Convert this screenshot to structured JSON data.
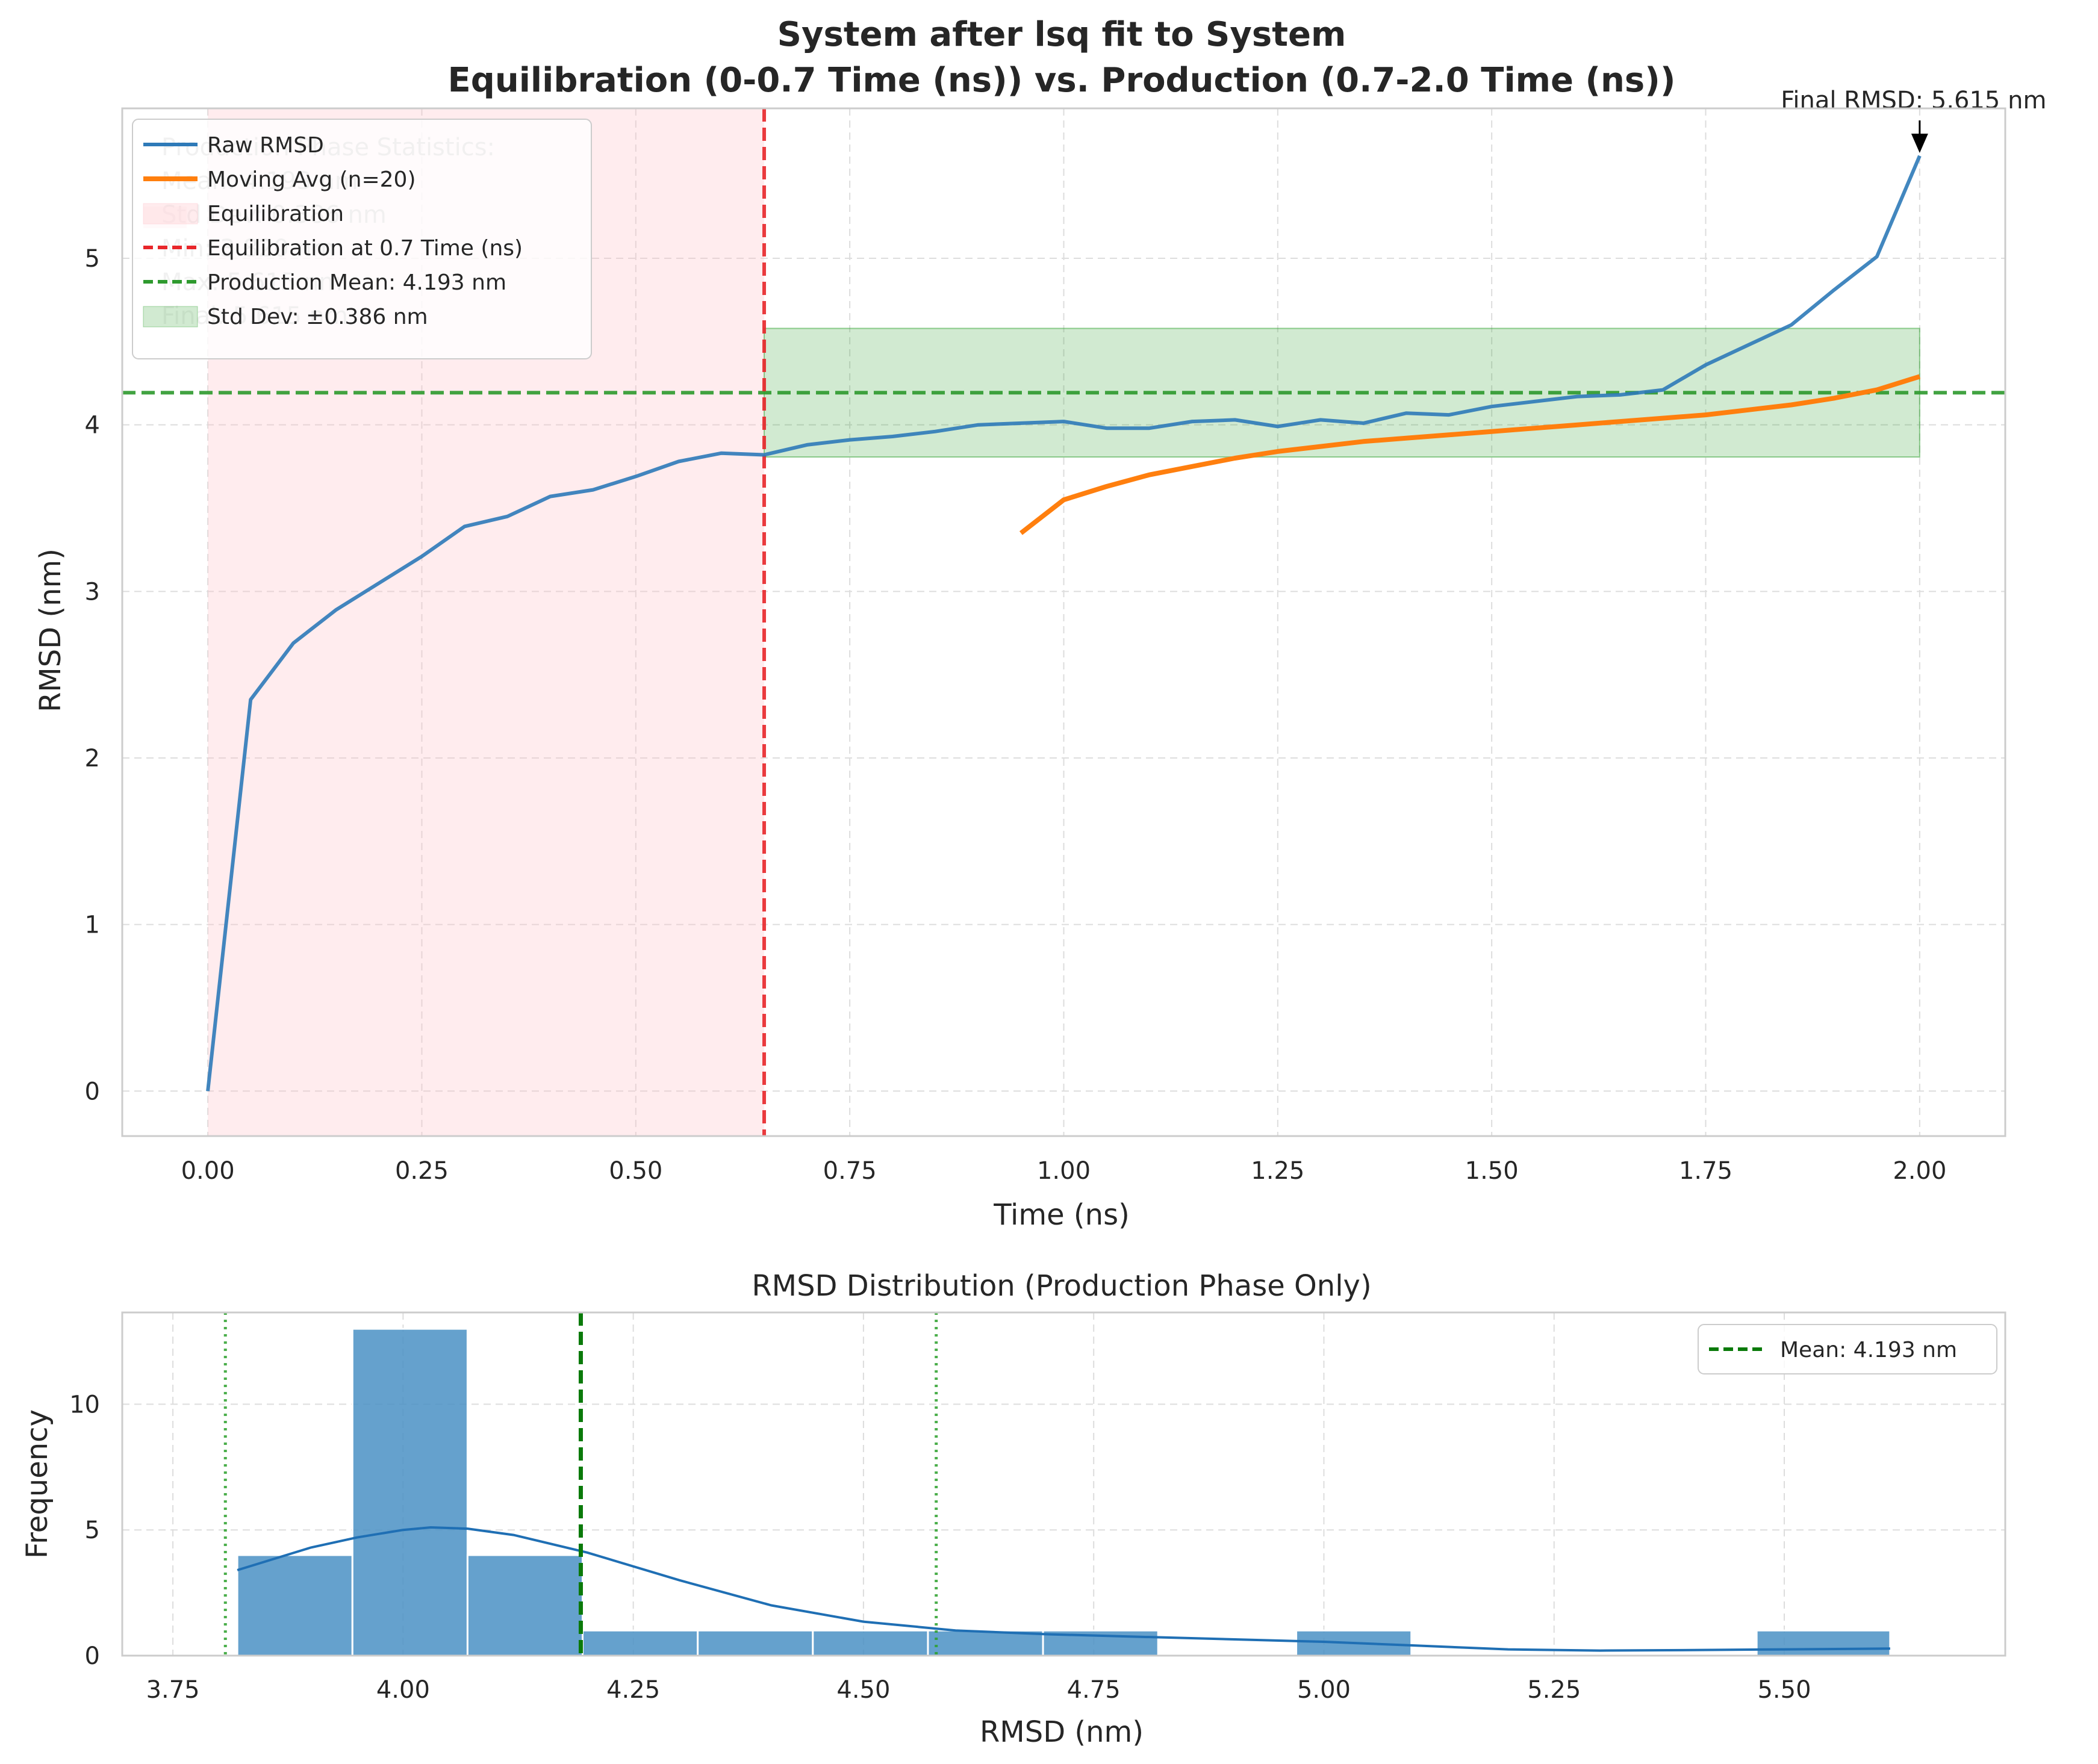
{
  "chart_data": [
    {
      "type": "line",
      "title": "System after lsq fit to System\nEquilibration (0-0.7 Time (ns)) vs. Production (0.7-2.0 Time (ns))",
      "title_lines": [
        "System after lsq fit to System",
        "Equilibration (0-0.7 Time (ns)) vs. Production (0.7-2.0 Time (ns))"
      ],
      "xlabel": "Time (ns)",
      "ylabel": "RMSD (nm)",
      "xlim": [
        -0.1,
        2.1
      ],
      "ylim": [
        -0.27,
        5.9
      ],
      "xticks": [
        0.0,
        0.25,
        0.5,
        0.75,
        1.0,
        1.25,
        1.5,
        1.75,
        2.0
      ],
      "xtick_labels": [
        "0.00",
        "0.25",
        "0.50",
        "0.75",
        "1.00",
        "1.25",
        "1.50",
        "1.75",
        "2.00"
      ],
      "yticks": [
        0,
        1,
        2,
        3,
        4,
        5
      ],
      "ytick_labels": [
        "0",
        "1",
        "2",
        "3",
        "4",
        "5"
      ],
      "grid": true,
      "legend_position": "upper-left",
      "series": [
        {
          "name": "Raw RMSD",
          "color": "#2e7ab8",
          "x": [
            0.0,
            0.05,
            0.1,
            0.15,
            0.2,
            0.25,
            0.3,
            0.35,
            0.4,
            0.45,
            0.5,
            0.55,
            0.6,
            0.65,
            0.7,
            0.75,
            0.8,
            0.85,
            0.9,
            0.95,
            1.0,
            1.05,
            1.1,
            1.15,
            1.2,
            1.25,
            1.3,
            1.35,
            1.4,
            1.45,
            1.5,
            1.55,
            1.6,
            1.65,
            1.7,
            1.75,
            1.8,
            1.85,
            1.9,
            1.95,
            2.0
          ],
          "y": [
            0.0,
            2.35,
            2.69,
            2.89,
            3.05,
            3.21,
            3.39,
            3.45,
            3.57,
            3.61,
            3.69,
            3.78,
            3.83,
            3.82,
            3.88,
            3.91,
            3.93,
            3.96,
            4.0,
            4.01,
            4.02,
            3.98,
            3.98,
            4.02,
            4.03,
            3.99,
            4.03,
            4.01,
            4.07,
            4.06,
            4.11,
            4.14,
            4.17,
            4.18,
            4.21,
            4.36,
            4.48,
            4.6,
            4.81,
            5.01,
            5.615
          ]
        },
        {
          "name": "Moving Avg (n=20)",
          "color": "#ff7f0e",
          "x": [
            0.95,
            1.0,
            1.05,
            1.1,
            1.15,
            1.2,
            1.25,
            1.3,
            1.35,
            1.4,
            1.45,
            1.5,
            1.55,
            1.6,
            1.65,
            1.7,
            1.75,
            1.8,
            1.85,
            1.9,
            1.95,
            2.0
          ],
          "y": [
            3.35,
            3.55,
            3.63,
            3.7,
            3.75,
            3.8,
            3.84,
            3.87,
            3.9,
            3.92,
            3.94,
            3.96,
            3.98,
            4.0,
            4.02,
            4.04,
            4.06,
            4.09,
            4.12,
            4.16,
            4.21,
            4.29
          ]
        }
      ],
      "equilibration_region": {
        "label": "Equilibration",
        "x0": 0.0,
        "x1": 0.65,
        "color": "#ffc0c8"
      },
      "equilibration_line": {
        "label": "Equilibration at 0.7 Time (ns)",
        "x": 0.65,
        "color": "#e8262a"
      },
      "production_mean_line": {
        "label": "Production Mean: 4.193 nm",
        "y": 4.193,
        "color": "#2e9a2e"
      },
      "std_band": {
        "label": "Std Dev: ±0.386 nm",
        "x0": 0.65,
        "x1": 2.0,
        "y0": 3.807,
        "y1": 4.579,
        "color": "#2ca02c"
      },
      "annotation": {
        "text": "Final RMSD: 5.615 nm",
        "x": 2.0,
        "y": 5.615
      },
      "stats_box": [
        "Production Phase Statistics:",
        "Mean: 4.193 nm",
        "Std Dev: 0.386 nm",
        "Min: 3.820 nm",
        "Max: 5.615 nm",
        "Final: 5.615 nm"
      ]
    },
    {
      "type": "bar",
      "title": "RMSD Distribution (Production Phase Only)",
      "xlabel": "RMSD (nm)",
      "ylabel": "Frequency",
      "xlim": [
        3.695,
        5.74
      ],
      "ylim": [
        0,
        13.65
      ],
      "xticks": [
        3.75,
        4.0,
        4.25,
        4.5,
        4.75,
        5.0,
        5.25,
        5.5
      ],
      "xtick_labels": [
        "3.75",
        "4.00",
        "4.25",
        "4.50",
        "4.75",
        "5.00",
        "5.25",
        "5.50"
      ],
      "yticks": [
        0,
        5,
        10
      ],
      "ytick_labels": [
        "0",
        "5",
        "10"
      ],
      "grid": true,
      "legend_position": "upper-right",
      "bar_color": "#4a90c4",
      "bins": [
        {
          "x0": 3.82,
          "x1": 3.945,
          "count": 4
        },
        {
          "x0": 3.945,
          "x1": 4.07,
          "count": 13
        },
        {
          "x0": 4.07,
          "x1": 4.195,
          "count": 4
        },
        {
          "x0": 4.195,
          "x1": 4.32,
          "count": 1
        },
        {
          "x0": 4.32,
          "x1": 4.445,
          "count": 1
        },
        {
          "x0": 4.445,
          "x1": 4.57,
          "count": 1
        },
        {
          "x0": 4.57,
          "x1": 4.695,
          "count": 1
        },
        {
          "x0": 4.695,
          "x1": 4.82,
          "count": 1
        },
        {
          "x0": 4.97,
          "x1": 5.095,
          "count": 1
        },
        {
          "x0": 5.47,
          "x1": 5.615,
          "count": 1
        }
      ],
      "kde": {
        "color": "#1f6fb4",
        "x": [
          3.82,
          3.9,
          3.95,
          4.0,
          4.03,
          4.07,
          4.12,
          4.2,
          4.3,
          4.4,
          4.5,
          4.6,
          4.7,
          4.8,
          4.9,
          5.0,
          5.1,
          5.2,
          5.3,
          5.4,
          5.5,
          5.615
        ],
        "y": [
          3.4,
          4.3,
          4.7,
          5.0,
          5.1,
          5.05,
          4.8,
          4.1,
          3.0,
          2.0,
          1.35,
          1.0,
          0.85,
          0.75,
          0.65,
          0.55,
          0.4,
          0.25,
          0.2,
          0.22,
          0.25,
          0.28
        ]
      },
      "mean_line": {
        "label": "Mean: 4.193 nm",
        "x": 4.193,
        "color": "#0a7a0a"
      },
      "std_lines": {
        "x": [
          3.807,
          4.579
        ],
        "color": "#2ca02c"
      }
    }
  ]
}
